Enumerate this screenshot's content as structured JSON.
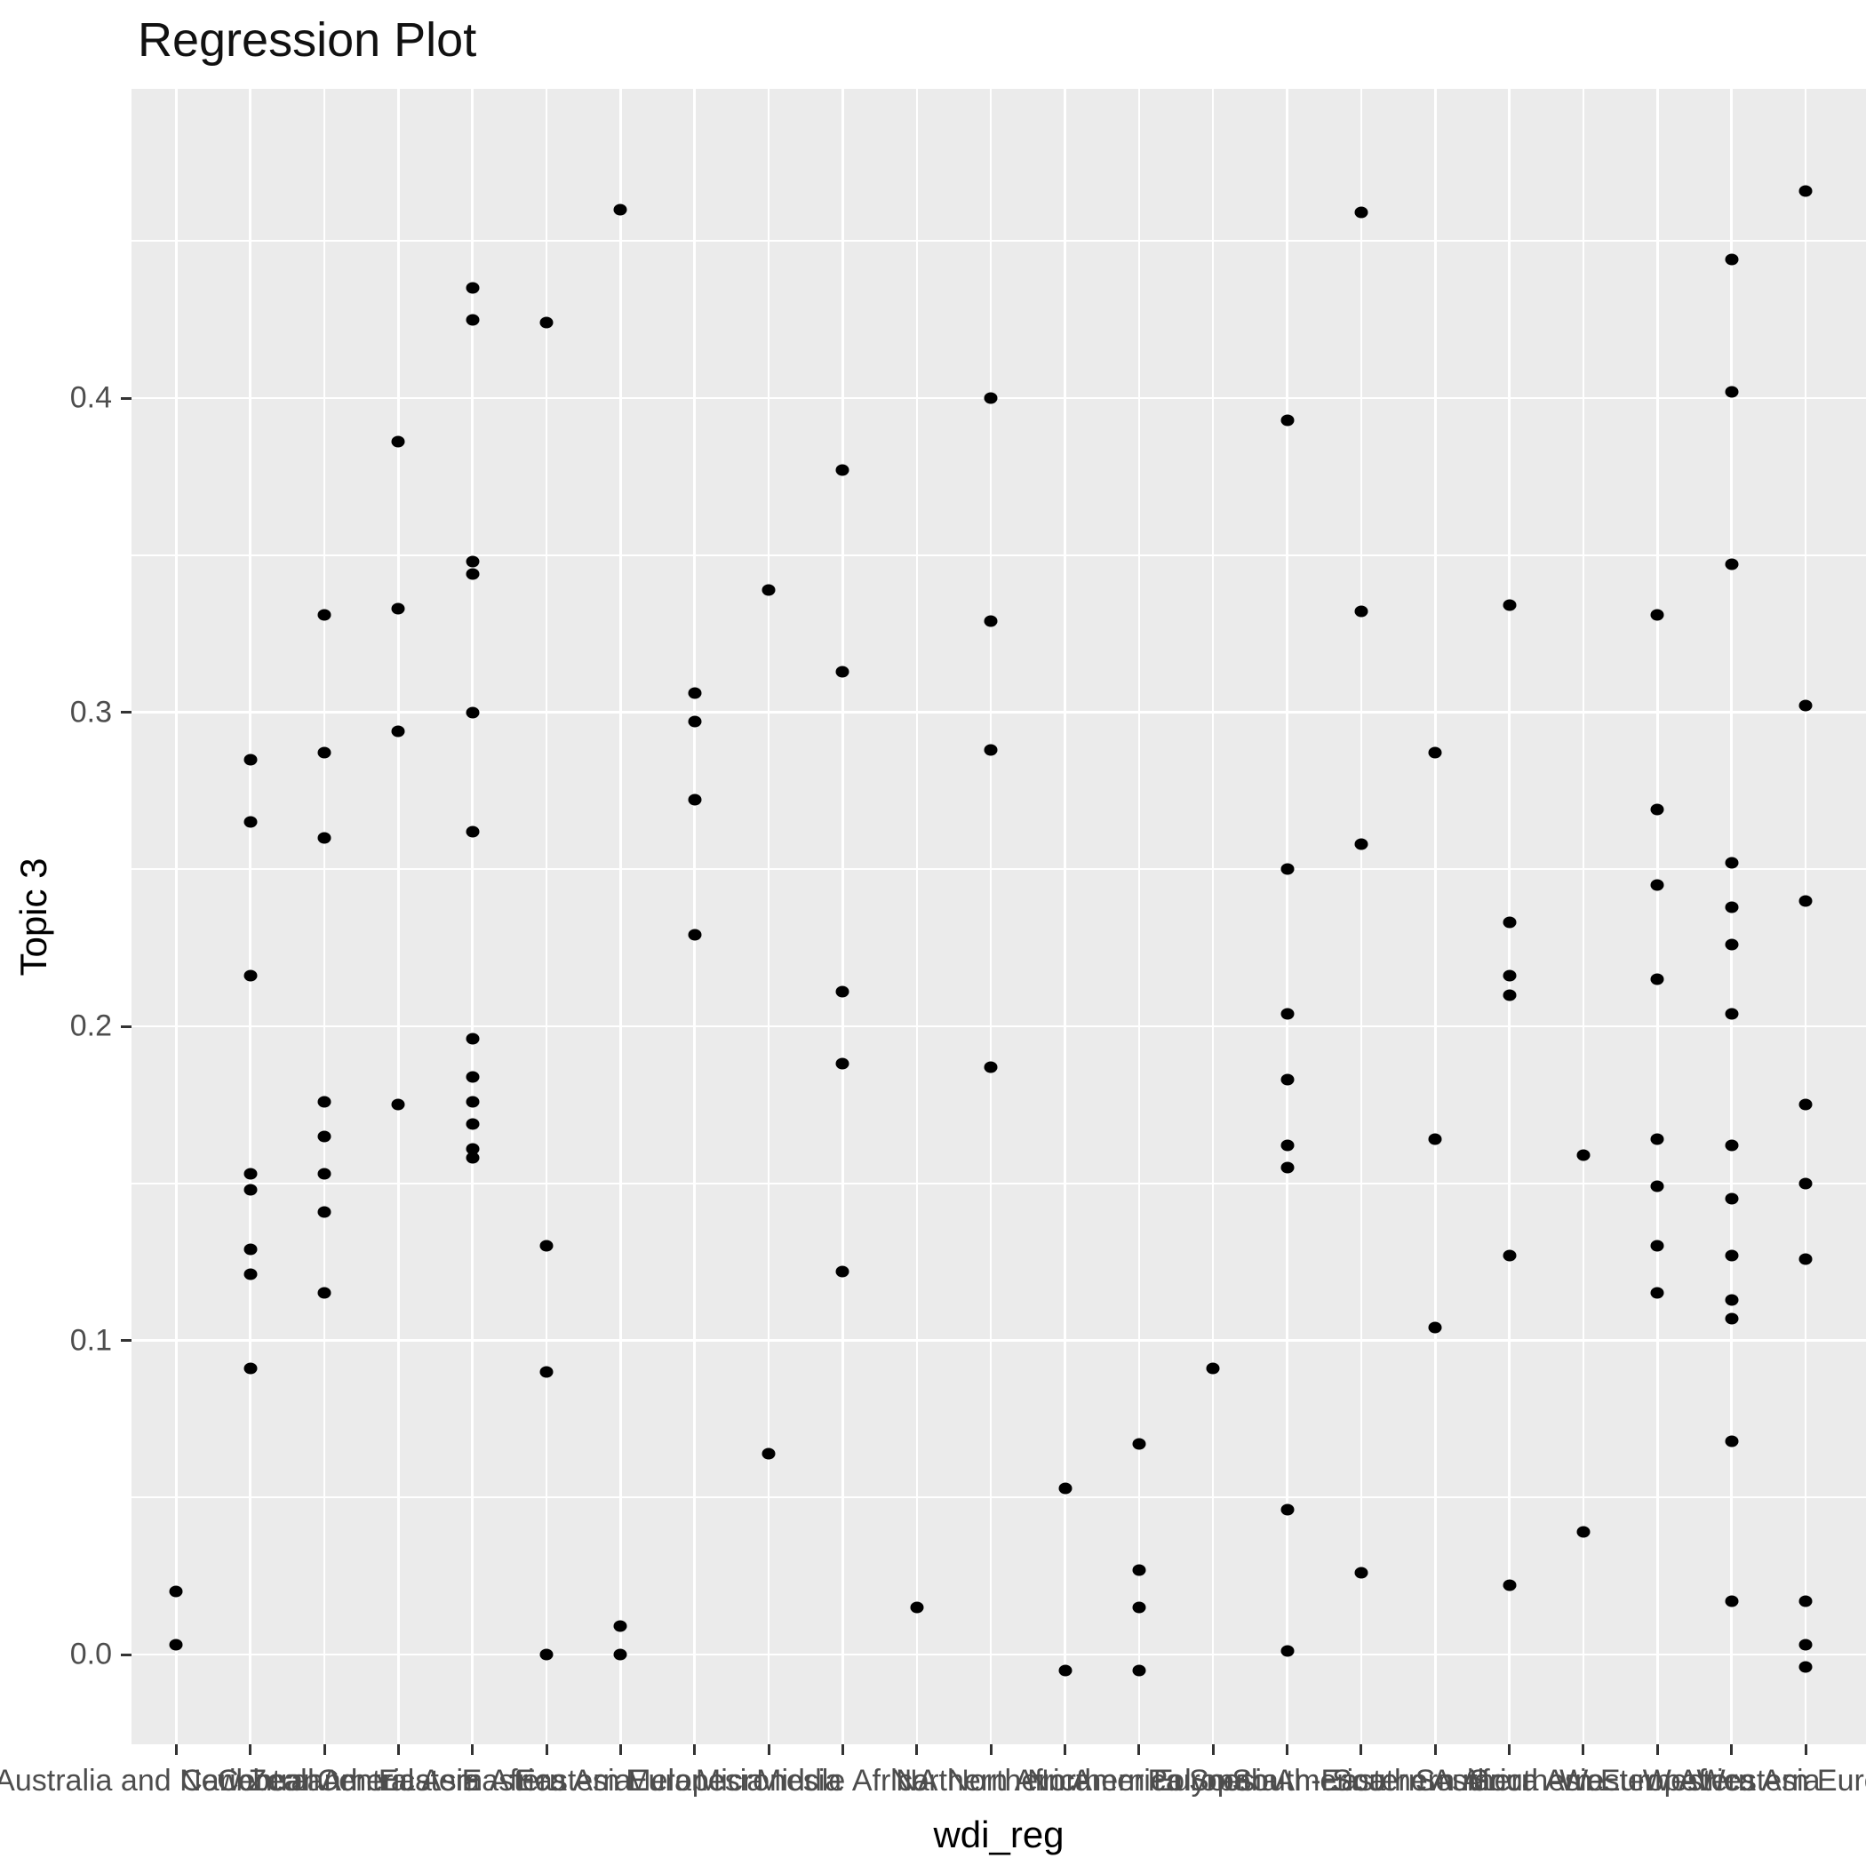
{
  "title": "Regression Plot",
  "x_axis": {
    "label": "wdi_reg"
  },
  "y_axis": {
    "label": "Topic 3",
    "tick_labels": [
      "0.0",
      "0.1",
      "0.2",
      "0.3",
      "0.4"
    ]
  },
  "colors": {
    "panel_background": "#ebebeb",
    "gridline": "#ffffff",
    "point": "#000000",
    "tick_label_text": "#4d4d4d",
    "tick_mark": "#333333",
    "title_text": "#111111"
  },
  "chart_data": {
    "type": "scatter",
    "title": "Regression Plot",
    "xlabel": "wdi_reg",
    "ylabel": "Topic 3",
    "x_type": "categorical",
    "ylim": [
      -0.028,
      0.498
    ],
    "y_major_breaks": [
      0.0,
      0.1,
      0.2,
      0.3,
      0.4
    ],
    "y_minor_breaks": [
      0.05,
      0.15,
      0.25,
      0.35,
      0.45
    ],
    "grid": true,
    "legend": false,
    "categories": [
      "Australia and New Zealand",
      "Caribbean",
      "Central America",
      "Central Asia",
      "Eastern Africa",
      "Eastern Asia",
      "Eastern Europe",
      "Melanesia",
      "Micronesia",
      "Middle Africa",
      "NA",
      "Northern Africa",
      "Northern America",
      "Northern Europe",
      "Polynesia",
      "South America",
      "South-Eastern Asia",
      "Southern Africa",
      "Southern Asia",
      "Southern Europe",
      "Western Africa",
      "Western Asia",
      "Western Europe"
    ],
    "series": [
      {
        "category": "Australia and New Zealand",
        "values": [
          0.02,
          0.003
        ]
      },
      {
        "category": "Caribbean",
        "values": [
          0.285,
          0.265,
          0.216,
          0.153,
          0.148,
          0.129,
          0.121,
          0.091
        ]
      },
      {
        "category": "Central America",
        "values": [
          0.331,
          0.287,
          0.26,
          0.176,
          0.165,
          0.153,
          0.141,
          0.115
        ]
      },
      {
        "category": "Central Asia",
        "values": [
          0.386,
          0.333,
          0.294,
          0.175
        ]
      },
      {
        "category": "Eastern Africa",
        "values": [
          0.435,
          0.425,
          0.348,
          0.344,
          0.3,
          0.262,
          0.196,
          0.184,
          0.176,
          0.169,
          0.161,
          0.158
        ]
      },
      {
        "category": "Eastern Asia",
        "values": [
          0.424,
          0.13,
          0.09,
          0.0
        ]
      },
      {
        "category": "Eastern Europe",
        "values": [
          0.46,
          0.009,
          0.0
        ]
      },
      {
        "category": "Melanesia",
        "values": [
          0.306,
          0.297,
          0.272,
          0.229
        ]
      },
      {
        "category": "Micronesia",
        "values": [
          0.339,
          0.064
        ]
      },
      {
        "category": "Middle Africa",
        "values": [
          0.377,
          0.313,
          0.211,
          0.188,
          0.122
        ]
      },
      {
        "category": "NA",
        "values": [
          0.015
        ]
      },
      {
        "category": "Northern Africa",
        "values": [
          0.4,
          0.329,
          0.288,
          0.187
        ]
      },
      {
        "category": "Northern America",
        "values": [
          0.053,
          -0.005
        ]
      },
      {
        "category": "Northern Europe",
        "values": [
          0.067,
          0.027,
          0.015,
          -0.005
        ]
      },
      {
        "category": "Polynesia",
        "values": [
          0.091
        ]
      },
      {
        "category": "South America",
        "values": [
          0.393,
          0.25,
          0.204,
          0.183,
          0.162,
          0.155,
          0.046,
          0.001
        ]
      },
      {
        "category": "South-Eastern Asia",
        "values": [
          0.459,
          0.332,
          0.258,
          0.026
        ]
      },
      {
        "category": "Southern Africa",
        "values": [
          0.287,
          0.164,
          0.104
        ]
      },
      {
        "category": "Southern Asia",
        "values": [
          0.334,
          0.233,
          0.216,
          0.21,
          0.127,
          0.022
        ]
      },
      {
        "category": "Southern Europe",
        "values": [
          0.159,
          0.039
        ]
      },
      {
        "category": "Western Africa",
        "values": [
          0.331,
          0.269,
          0.245,
          0.215,
          0.164,
          0.149,
          0.13,
          0.115
        ]
      },
      {
        "category": "Western Asia",
        "values": [
          0.444,
          0.402,
          0.347,
          0.252,
          0.238,
          0.226,
          0.204,
          0.162,
          0.145,
          0.127,
          0.113,
          0.107,
          0.068,
          0.017
        ]
      },
      {
        "category": "Western Europe",
        "values": [
          0.466,
          0.302,
          0.24,
          0.175,
          0.15,
          0.126,
          0.017,
          0.003,
          -0.004
        ]
      }
    ]
  }
}
